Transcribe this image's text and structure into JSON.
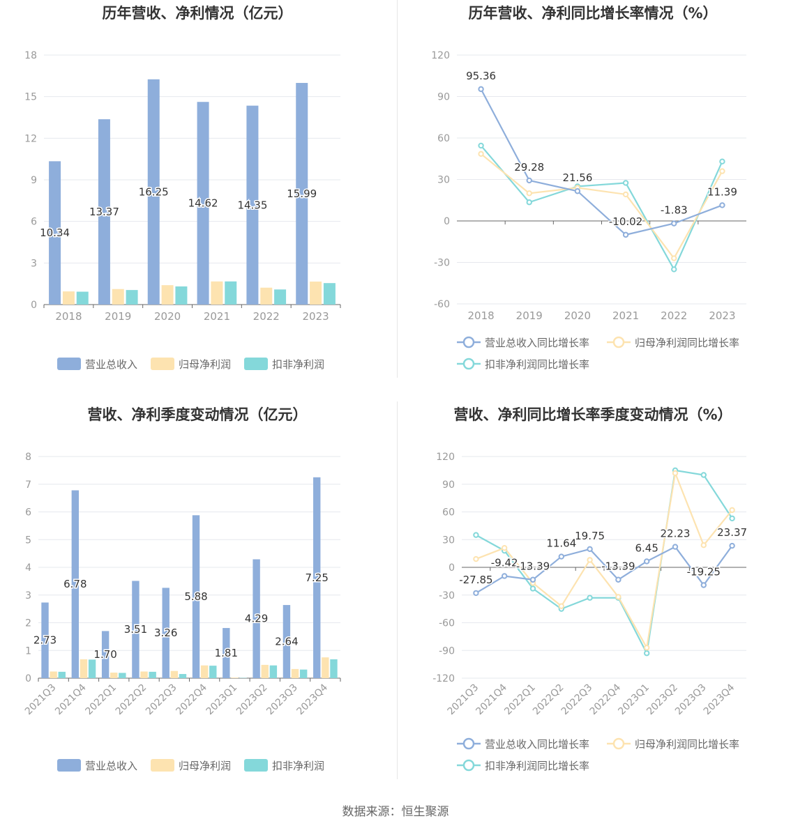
{
  "colors": {
    "revenue": "#8eaedb",
    "net_profit": "#fde3b0",
    "deducted_profit": "#84d8da",
    "grid": "#e6e8ee",
    "axis": "#666666",
    "text": "#333333",
    "label": "#999999"
  },
  "source": "数据来源：恒生聚源",
  "chart_data": [
    {
      "type": "bar",
      "title": "历年营收、净利情况（亿元）",
      "categories": [
        "2018",
        "2019",
        "2020",
        "2021",
        "2022",
        "2023"
      ],
      "ylim": [
        0,
        18
      ],
      "yticks": [
        "0",
        "3",
        "6",
        "9",
        "12",
        "15",
        "18"
      ],
      "legend_position": "bottom",
      "series": [
        {
          "name": "营业总收入",
          "values": [
            10.34,
            13.37,
            16.25,
            14.62,
            14.35,
            15.99
          ],
          "labels": [
            "10.34",
            "13.37",
            "16.25",
            "14.62",
            "14.35",
            "15.99"
          ]
        },
        {
          "name": "归母净利润",
          "values": [
            0.95,
            1.12,
            1.4,
            1.67,
            1.22,
            1.66
          ]
        },
        {
          "name": "扣非净利润",
          "values": [
            0.93,
            1.05,
            1.31,
            1.67,
            1.09,
            1.55
          ]
        }
      ]
    },
    {
      "type": "line",
      "title": "历年营收、净利同比增长率情况（%）",
      "categories": [
        "2018",
        "2019",
        "2020",
        "2021",
        "2022",
        "2023"
      ],
      "ylim": [
        -60,
        120
      ],
      "yticks": [
        "-60",
        "-30",
        "0",
        "30",
        "60",
        "90",
        "120"
      ],
      "legend_position": "bottom",
      "series": [
        {
          "name": "营业总收入同比增长率",
          "values": [
            95.36,
            29.28,
            21.56,
            -10.02,
            -1.83,
            11.39
          ],
          "labels": [
            "95.36",
            "29.28",
            "21.56",
            "-10.02",
            "-1.83",
            "11.39"
          ]
        },
        {
          "name": "归母净利润同比增长率",
          "values": [
            48.5,
            20.0,
            24.0,
            19.2,
            -27.0,
            36.0
          ]
        },
        {
          "name": "扣非净利润同比增长率",
          "values": [
            54.5,
            13.5,
            25.0,
            27.5,
            -35.0,
            43.0
          ]
        }
      ]
    },
    {
      "type": "bar",
      "title": "营收、净利季度变动情况（亿元）",
      "categories": [
        "2021Q3",
        "2021Q4",
        "2022Q1",
        "2022Q2",
        "2022Q3",
        "2022Q4",
        "2023Q1",
        "2023Q2",
        "2023Q3",
        "2023Q4"
      ],
      "ylim": [
        0,
        8
      ],
      "yticks": [
        "0",
        "1",
        "2",
        "3",
        "4",
        "5",
        "6",
        "7",
        "8"
      ],
      "legend_position": "bottom",
      "series": [
        {
          "name": "营业总收入",
          "values": [
            2.73,
            6.78,
            1.7,
            3.51,
            3.26,
            5.88,
            1.81,
            4.29,
            2.64,
            7.25
          ],
          "labels": [
            "2.73",
            "6.78",
            "1.70",
            "3.51",
            "3.26",
            "5.88",
            "1.81",
            "4.29",
            "2.64",
            "7.25"
          ]
        },
        {
          "name": "归母净利润",
          "values": [
            0.24,
            0.68,
            0.2,
            0.24,
            0.26,
            0.46,
            0.02,
            0.48,
            0.33,
            0.75
          ]
        },
        {
          "name": "扣非净利润",
          "values": [
            0.23,
            0.67,
            0.19,
            0.23,
            0.15,
            0.45,
            0.01,
            0.46,
            0.31,
            0.68
          ]
        }
      ]
    },
    {
      "type": "line",
      "title": "营收、净利同比增长率季度变动情况（%）",
      "categories": [
        "2021Q3",
        "2021Q4",
        "2022Q1",
        "2022Q2",
        "2022Q3",
        "2022Q4",
        "2023Q1",
        "2023Q2",
        "2023Q3",
        "2023Q4"
      ],
      "ylim": [
        -120,
        120
      ],
      "yticks": [
        "-120",
        "-90",
        "-60",
        "-30",
        "0",
        "30",
        "60",
        "90",
        "120"
      ],
      "legend_position": "bottom",
      "series": [
        {
          "name": "营业总收入同比增长率",
          "values": [
            -27.85,
            -9.42,
            -13.39,
            11.64,
            19.75,
            -13.39,
            6.45,
            22.23,
            -19.25,
            23.37
          ],
          "labels": [
            "-27.85",
            "-9.42",
            "-13.39",
            "11.64",
            "19.75",
            "-13.39",
            "6.45",
            "22.23",
            "-19.25",
            "23.37"
          ]
        },
        {
          "name": "归母净利润同比增长率",
          "values": [
            9.0,
            21.0,
            -17.0,
            -42.0,
            8.0,
            -32.0,
            -87.0,
            102.0,
            24.0,
            62.0
          ]
        },
        {
          "name": "扣非净利润同比增长率",
          "values": [
            35.0,
            18.0,
            -23.0,
            -45.0,
            -33.0,
            -33.0,
            -93.0,
            105.0,
            100.0,
            53.0
          ]
        }
      ]
    }
  ]
}
